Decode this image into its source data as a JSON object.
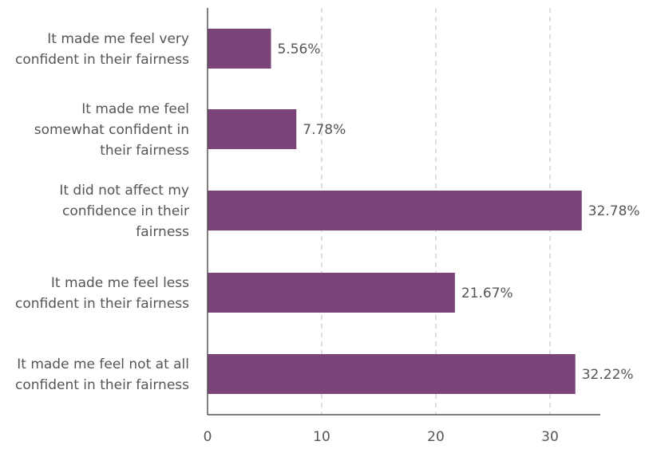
{
  "chart_data": {
    "type": "bar",
    "orientation": "horizontal",
    "categories": [
      "It made me feel very confident in their fairness",
      "It made me feel somewhat confident in their fairness",
      "It did not affect my confidence in their fairness",
      "It made me feel less confident in their fairness",
      "It made me feel not at all confident in their fairness"
    ],
    "category_lines": [
      [
        "It made me feel very",
        "confident in their fairness"
      ],
      [
        "It made me feel",
        "somewhat confident in",
        "their fairness"
      ],
      [
        "It did not affect my",
        "confidence in their",
        "fairness"
      ],
      [
        "It made me feel less",
        "confident in their fairness"
      ],
      [
        "It made me feel not at all",
        "confident in their fairness"
      ]
    ],
    "values": [
      5.56,
      7.78,
      32.78,
      21.67,
      32.22
    ],
    "value_labels": [
      "5.56%",
      "7.78%",
      "32.78%",
      "21.67%",
      "32.22%"
    ],
    "title": "",
    "xlabel": "",
    "ylabel": "",
    "xlim": [
      0,
      34
    ],
    "xticks": [
      0,
      10,
      20,
      30
    ],
    "xtick_labels": [
      "0",
      "10",
      "20",
      "30"
    ],
    "grid": "vertical dashed",
    "legend": "none",
    "colors": {
      "bar": "#7b4479",
      "text": "#555555",
      "axis": "#555555",
      "grid": "#c8c8c8"
    }
  }
}
